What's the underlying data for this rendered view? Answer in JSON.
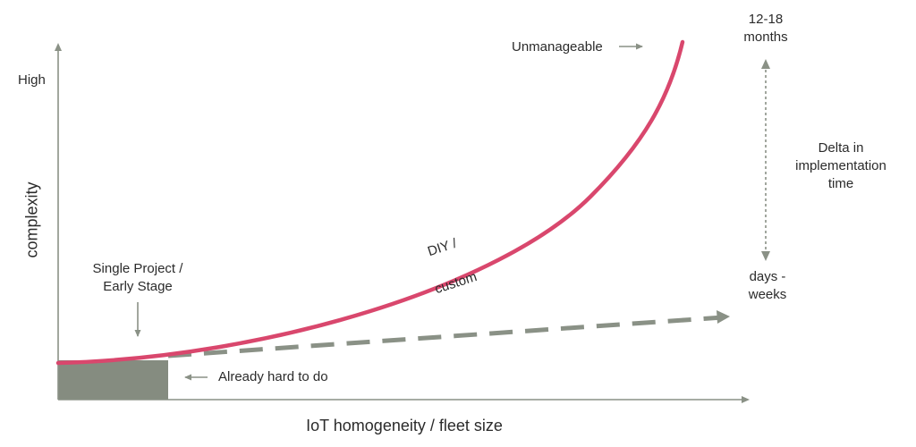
{
  "axes": {
    "y_label": "complexity",
    "y_high": "High",
    "x_label": "IoT homogeneity / fleet size"
  },
  "annotations": {
    "unmanageable": "Unmanageable",
    "single_project": [
      "Single Project /",
      "Early Stage"
    ],
    "already_hard": "Already hard to do",
    "diy_line1": "DIY /",
    "diy_line2": "custom",
    "top_time": [
      "12-18",
      "months"
    ],
    "delta": [
      "Delta in",
      "implementation",
      "time"
    ],
    "bottom_time": [
      "days -",
      "weeks"
    ]
  },
  "colors": {
    "curve": "#d9476d",
    "dashed": "#8a9186",
    "axis": "#8a9186",
    "shaded": "#858c80",
    "arrow": "#8a9186"
  }
}
